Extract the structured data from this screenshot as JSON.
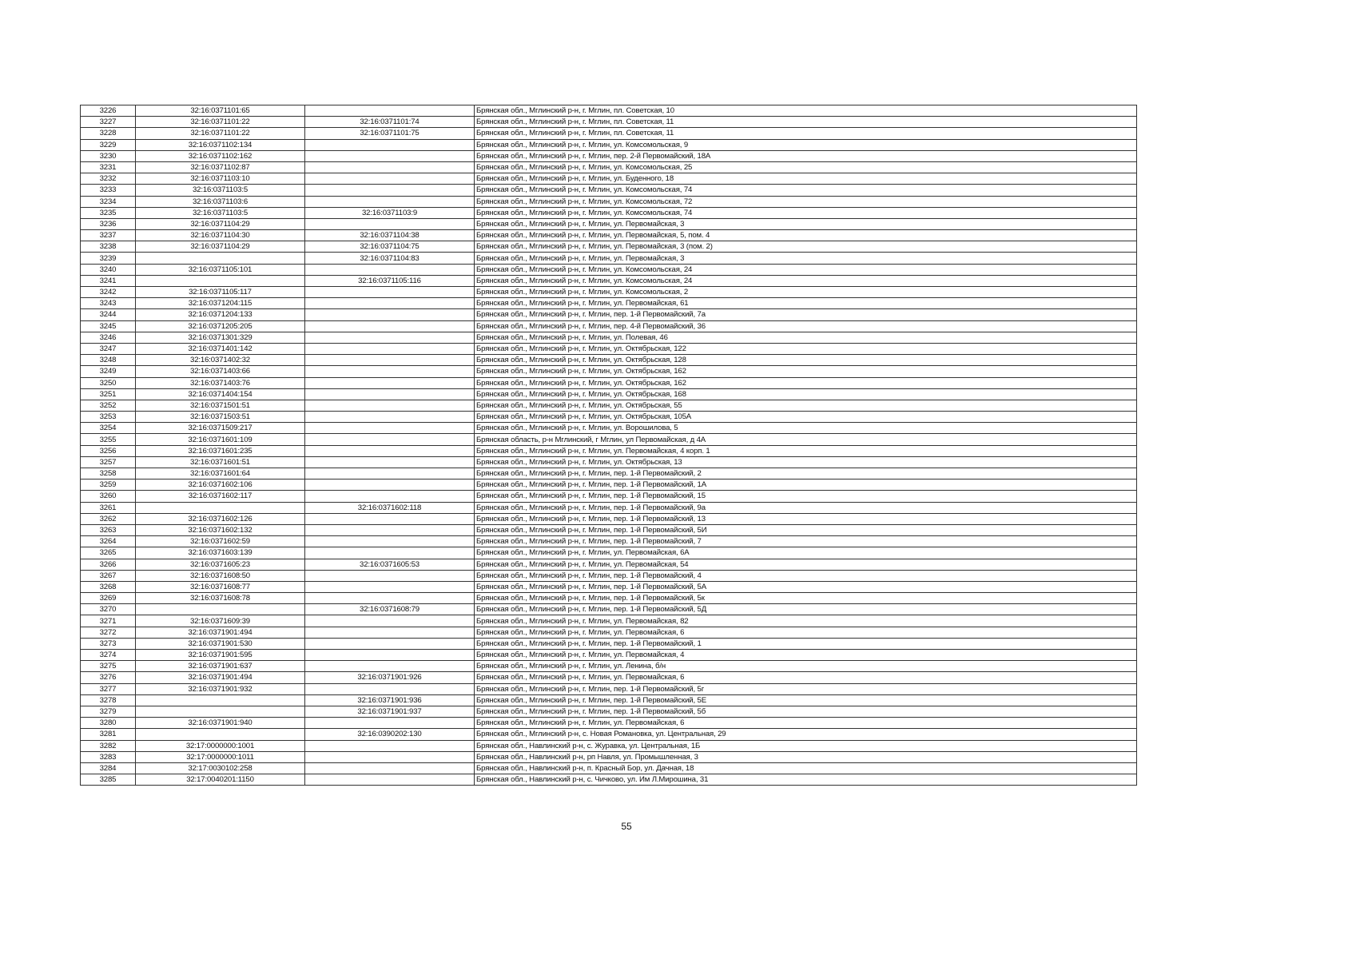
{
  "page_number": "55",
  "table": {
    "rows": [
      [
        "3226",
        "32:16:0371101:65",
        "",
        "Брянская обл., Мглинский р-н, г. Мглин, пл. Советская, 10"
      ],
      [
        "3227",
        "32:16:0371101:22",
        "32:16:0371101:74",
        "Брянская обл., Мглинский р-н, г. Мглин, пл. Советская, 11"
      ],
      [
        "3228",
        "32:16:0371101:22",
        "32:16:0371101:75",
        "Брянская обл., Мглинский р-н, г. Мглин, пл. Советская, 11"
      ],
      [
        "3229",
        "32:16:0371102:134",
        "",
        "Брянская обл., Мглинский р-н, г. Мглин, ул. Комсомольская, 9"
      ],
      [
        "3230",
        "32:16:0371102:162",
        "",
        "Брянская обл., Мглинский р-н, г. Мглин, пер. 2-й Первомайский, 18А"
      ],
      [
        "3231",
        "32:16:0371102:87",
        "",
        "Брянская обл., Мглинский р-н, г. Мглин, ул. Комсомольская, 25"
      ],
      [
        "3232",
        "32:16:0371103:10",
        "",
        "Брянская обл., Мглинский р-н, г. Мглин, ул. Буденного, 18"
      ],
      [
        "3233",
        "32:16:0371103:5",
        "",
        "Брянская обл., Мглинский р-н, г. Мглин, ул. Комсомольская, 74"
      ],
      [
        "3234",
        "32:16:0371103:6",
        "",
        "Брянская обл., Мглинский р-н, г. Мглин, ул. Комсомольская, 72"
      ],
      [
        "3235",
        "32:16:0371103:5",
        "32:16:0371103:9",
        "Брянская обл., Мглинский р-н, г. Мглин, ул. Комсомольская, 74"
      ],
      [
        "3236",
        "32:16:0371104:29",
        "",
        "Брянская обл., Мглинский р-н, г. Мглин, ул. Первомайская, 3"
      ],
      [
        "3237",
        "32:16:0371104:30",
        "32:16:0371104:38",
        "Брянская обл., Мглинский р-н, г. Мглин, ул. Первомайская, 5, пом. 4"
      ],
      [
        "3238",
        "32:16:0371104:29",
        "32:16:0371104:75",
        "Брянская обл., Мглинский р-н, г. Мглин, ул. Первомайская, 3 (пом. 2)"
      ],
      [
        "3239",
        "",
        "32:16:0371104:83",
        "Брянская обл., Мглинский р-н, г. Мглин, ул. Первомайская, 3"
      ],
      [
        "3240",
        "32:16:0371105:101",
        "",
        "Брянская обл., Мглинский р-н, г. Мглин, ул. Комсомольская, 24"
      ],
      [
        "3241",
        "",
        "32:16:0371105:116",
        "Брянская обл., Мглинский р-н, г. Мглин, ул. Комсомольская, 24"
      ],
      [
        "3242",
        "32:16:0371105:117",
        "",
        "Брянская обл., Мглинский р-н, г. Мглин, ул. Комсомольская, 2"
      ],
      [
        "3243",
        "32:16:0371204:115",
        "",
        "Брянская обл., Мглинский р-н, г. Мглин, ул. Первомайская, 61"
      ],
      [
        "3244",
        "32:16:0371204:133",
        "",
        "Брянская обл., Мглинский р-н, г. Мглин, пер. 1-й Первомайский, 7а"
      ],
      [
        "3245",
        "32:16:0371205:205",
        "",
        "Брянская обл., Мглинский р-н, г. Мглин, пер. 4-й Первомайский, 36"
      ],
      [
        "3246",
        "32:16:0371301:329",
        "",
        "Брянская обл., Мглинский р-н, г. Мглин, ул. Полевая, 46"
      ],
      [
        "3247",
        "32:16:0371401:142",
        "",
        "Брянская обл., Мглинский р-н, г. Мглин, ул. Октябрьская, 122"
      ],
      [
        "3248",
        "32:16:0371402:32",
        "",
        "Брянская обл., Мглинский р-н, г. Мглин, ул. Октябрьская, 128"
      ],
      [
        "3249",
        "32:16:0371403:66",
        "",
        "Брянская обл., Мглинский р-н, г. Мглин, ул. Октябрьская, 162"
      ],
      [
        "3250",
        "32:16:0371403:76",
        "",
        "Брянская обл., Мглинский р-н, г. Мглин, ул. Октябрьская, 162"
      ],
      [
        "3251",
        "32:16:0371404:154",
        "",
        "Брянская обл., Мглинский р-н, г. Мглин, ул. Октябрьская, 168"
      ],
      [
        "3252",
        "32:16:0371501:51",
        "",
        "Брянская обл., Мглинский р-н, г. Мглин, ул. Октябрьская, 55"
      ],
      [
        "3253",
        "32:16:0371503:51",
        "",
        "Брянская обл., Мглинский р-н, г. Мглин, ул. Октябрьская, 105А"
      ],
      [
        "3254",
        "32:16:0371509:217",
        "",
        "Брянская обл., Мглинский р-н, г. Мглин, ул. Ворошилова, 5"
      ],
      [
        "3255",
        "32:16:0371601:109",
        "",
        "Брянская область, р-н Мглинский, г Мглин, ул Первомайская, д 4А"
      ],
      [
        "3256",
        "32:16:0371601:235",
        "",
        "Брянская обл., Мглинский р-н, г. Мглин, ул. Первомайская, 4 корп. 1"
      ],
      [
        "3257",
        "32:16:0371601:51",
        "",
        "Брянская обл., Мглинский р-н, г. Мглин, ул. Октябрьская, 13"
      ],
      [
        "3258",
        "32:16:0371601:64",
        "",
        "Брянская обл., Мглинский р-н, г. Мглин, пер. 1-й Первомайский, 2"
      ],
      [
        "3259",
        "32:16:0371602:106",
        "",
        "Брянская обл., Мглинский р-н, г. Мглин, пер. 1-й Первомайский, 1А"
      ],
      [
        "3260",
        "32:16:0371602:117",
        "",
        "Брянская обл., Мглинский р-н, г. Мглин, пер. 1-й Первомайский, 15"
      ],
      [
        "3261",
        "",
        "32:16:0371602:118",
        "Брянская обл., Мглинский р-н, г. Мглин, пер. 1-й Первомайский, 9а"
      ],
      [
        "3262",
        "32:16:0371602:126",
        "",
        "Брянская обл., Мглинский р-н, г. Мглин, пер. 1-й Первомайский, 13"
      ],
      [
        "3263",
        "32:16:0371602:132",
        "",
        "Брянская обл., Мглинский р-н, г. Мглин, пер. 1-й Первомайский, 5И"
      ],
      [
        "3264",
        "32:16:0371602:59",
        "",
        "Брянская обл., Мглинский р-н, г. Мглин, пер. 1-й Первомайский, 7"
      ],
      [
        "3265",
        "32:16:0371603:139",
        "",
        "Брянская обл., Мглинский р-н, г. Мглин, ул. Первомайская, 6А"
      ],
      [
        "3266",
        "32:16:0371605:23",
        "32:16:0371605:53",
        "Брянская обл., Мглинский р-н, г. Мглин, ул. Первомайская, 54"
      ],
      [
        "3267",
        "32:16:0371608:50",
        "",
        "Брянская обл., Мглинский р-н, г. Мглин, пер. 1-й Первомайский, 4"
      ],
      [
        "3268",
        "32:16:0371608:77",
        "",
        "Брянская обл., Мглинский р-н, г. Мглин, пер. 1-й Первомайский, 5А"
      ],
      [
        "3269",
        "32:16:0371608:78",
        "",
        "Брянская обл., Мглинский р-н, г. Мглин, пер. 1-й Первомайский, 5к"
      ],
      [
        "3270",
        "",
        "32:16:0371608:79",
        "Брянская обл., Мглинский р-н, г. Мглин, пер. 1-й Первомайский, 5Д"
      ],
      [
        "3271",
        "32:16:0371609:39",
        "",
        "Брянская обл., Мглинский р-н, г. Мглин, ул. Первомайская, 82"
      ],
      [
        "3272",
        "32:16:0371901:494",
        "",
        "Брянская обл., Мглинский р-н, г. Мглин, ул. Первомайская, 6"
      ],
      [
        "3273",
        "32:16:0371901:530",
        "",
        "Брянская обл., Мглинский р-н, г. Мглин, пер. 1-й Первомайский, 1"
      ],
      [
        "3274",
        "32:16:0371901:595",
        "",
        "Брянская обл., Мглинский р-н, г. Мглин, ул. Первомайская, 4"
      ],
      [
        "3275",
        "32:16:0371901:637",
        "",
        "Брянская обл., Мглинский р-н, г. Мглин, ул. Ленина, б/н"
      ],
      [
        "3276",
        "32:16:0371901:494",
        "32:16:0371901:926",
        "Брянская обл., Мглинский р-н, г. Мглин, ул. Первомайская, 6"
      ],
      [
        "3277",
        "32:16:0371901:932",
        "",
        "Брянская обл., Мглинский р-н, г. Мглин, пер. 1-й Первомайский, 5г"
      ],
      [
        "3278",
        "",
        "32:16:0371901:936",
        "Брянская обл., Мглинский р-н, г. Мглин, пер. 1-й Первомайский, 5Е"
      ],
      [
        "3279",
        "",
        "32:16:0371901:937",
        "Брянская обл., Мглинский р-н, г. Мглин, пер. 1-й Первомайский, 5б"
      ],
      [
        "3280",
        "32:16:0371901:940",
        "",
        "Брянская обл., Мглинский р-н, г. Мглин, ул. Первомайская, 6"
      ],
      [
        "3281",
        "",
        "32:16:0390202:130",
        "Брянская обл., Мглинский р-н, с. Новая Романовка, ул. Центральная, 29"
      ],
      [
        "3282",
        "32:17:0000000:1001",
        "",
        "Брянская обл., Навлинский р-н, с. Журавка, ул. Центральная, 1Б"
      ],
      [
        "3283",
        "32:17:0000000:1011",
        "",
        "Брянская обл., Навлинский р-н, рп Навля, ул. Промышленная, 3"
      ],
      [
        "3284",
        "32:17:0030102:258",
        "",
        "Брянская обл., Навлинский р-н, п. Красный Бор, ул. Дачная, 18"
      ],
      [
        "3285",
        "32:17:0040201:1150",
        "",
        "Брянская обл., Навлинский р-н, с. Чичково, ул. Им Л.Мирошина, 31"
      ]
    ]
  }
}
